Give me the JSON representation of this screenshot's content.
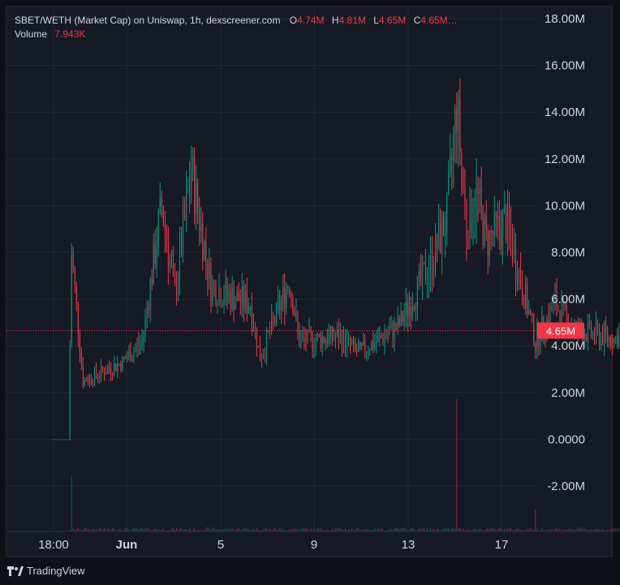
{
  "legend": {
    "symbol": "SBET/WETH (Market Cap) on Uniswap, 1h, dexscreener.com",
    "open_label": "O",
    "open_value": "4.74M",
    "high_label": "H",
    "high_value": "4.81M",
    "low_label": "L",
    "low_value": "4.65M",
    "close_label": "C",
    "close_value": "4.65M…",
    "volume_label": "Volume",
    "volume_value": "7.943K"
  },
  "brand": "TradingView",
  "colors": {
    "background": "#0f1117",
    "panel": "#161a25",
    "grid": "#232733",
    "up": "#089981",
    "down": "#f23645",
    "text": "#d1d4dc"
  },
  "price_axis": {
    "ticks": [
      "18.00M",
      "16.00M",
      "14.00M",
      "12.00M",
      "10.00M",
      "8.00M",
      "6.00M",
      "4.00M",
      "2.00M",
      "0.0000",
      "-2.00M"
    ],
    "min": -4.0,
    "max": 18.0,
    "current_label": "4.65M",
    "current_value": 4.65
  },
  "time_axis": {
    "ticks": [
      "18:00",
      "Jun",
      "5",
      "9",
      "13",
      "17"
    ]
  },
  "chart_data": {
    "type": "candlestick",
    "x_range": [
      "May 31 18:00",
      "Jun 17"
    ],
    "ylim": [
      -4.0,
      18.0
    ],
    "price_milestones": [
      {
        "x": "May 31 18:00",
        "value": 0
      },
      {
        "x": "Jun 1 03:00",
        "value": 0
      },
      {
        "x": "Jun 1 05:00",
        "value": 8.0
      },
      {
        "x": "Jun 1 12:00",
        "value": 2.5
      },
      {
        "x": "Jun 2 12:00",
        "value": 3.3
      },
      {
        "x": "Jun 3 00:00",
        "value": 4.2
      },
      {
        "x": "Jun 3 12:00",
        "value": 10.0
      },
      {
        "x": "Jun 3 20:00",
        "value": 6.2
      },
      {
        "x": "Jun 4 06:00",
        "value": 11.5
      },
      {
        "x": "Jun 4 18:00",
        "value": 6.6
      },
      {
        "x": "Jun 5 00:00",
        "value": 6.3
      },
      {
        "x": "Jun 5 18:00",
        "value": 5.8
      },
      {
        "x": "Jun 6 00:00",
        "value": 3.5
      },
      {
        "x": "Jun 6 18:00",
        "value": 6.8
      },
      {
        "x": "Jun 7 00:00",
        "value": 4.2
      },
      {
        "x": "Jun 8 00:00",
        "value": 4.4
      },
      {
        "x": "Jun 8 12:00",
        "value": 3.7
      },
      {
        "x": "Jun 9 12:00",
        "value": 4.8
      },
      {
        "x": "Jun 10 08:00",
        "value": 7.5
      },
      {
        "x": "Jun 10 18:00",
        "value": 9.5
      },
      {
        "x": "Jun 11 00:00",
        "value": 14.3
      },
      {
        "x": "Jun 11 06:00",
        "value": 9.0
      },
      {
        "x": "Jun 11 12:00",
        "value": 10.5
      },
      {
        "x": "Jun 11 18:00",
        "value": 8.5
      },
      {
        "x": "Jun 12 06:00",
        "value": 9.3
      },
      {
        "x": "Jun 12 18:00",
        "value": 6.0
      },
      {
        "x": "Jun 13 00:00",
        "value": 4.2
      },
      {
        "x": "Jun 13 12:00",
        "value": 5.8
      },
      {
        "x": "Jun 14 00:00",
        "value": 4.7
      },
      {
        "x": "Jun 15 00:00",
        "value": 4.3
      },
      {
        "x": "Jun 15 12:00",
        "value": 4.65
      }
    ],
    "volume_spikes": [
      {
        "x": "Jun 1 05:00",
        "value": 1.0
      },
      {
        "x": "Jun 11 00:00",
        "value": 2.4
      },
      {
        "x": "Jun 13 00:00",
        "value": 0.4
      },
      {
        "x": "Jun 15 12:00",
        "value": 0.1
      }
    ],
    "last_ohlc": {
      "open": "4.74M",
      "high": "4.81M",
      "low": "4.65M",
      "close": "4.65M"
    },
    "last_volume": "7.943K"
  }
}
